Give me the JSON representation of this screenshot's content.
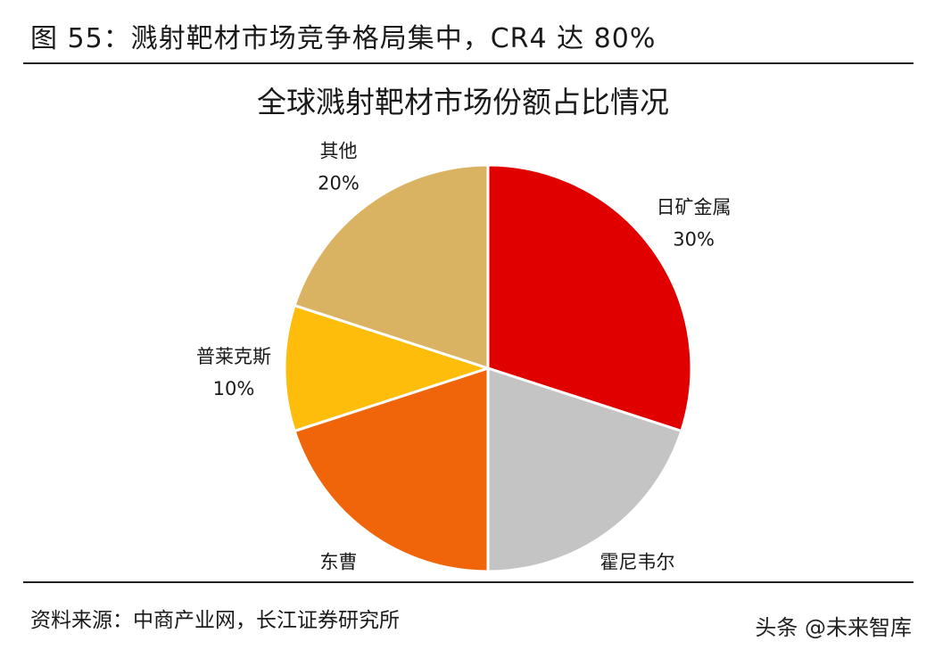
{
  "figure_title": "图 55：溅射靶材市场竞争格局集中，CR4 达 80%",
  "source": "资料来源：中商产业网，长江证券研究所",
  "watermark": "头条 @未来智库",
  "colors": {
    "日矿金属": "#e00000",
    "霍尼韦尔": "#c4c4c4",
    "东曹": "#f0650a",
    "普莱克斯": "#fdbd0a",
    "其他": "#d9b262"
  },
  "chart_data": {
    "type": "pie",
    "title": "全球溅射靶材市场份额占比情况",
    "slices": [
      {
        "label": "日矿金属",
        "value": 30,
        "value_label": "30%"
      },
      {
        "label": "霍尼韦尔",
        "value": 20,
        "value_label": "20%"
      },
      {
        "label": "东曹",
        "value": 20,
        "value_label": "20%"
      },
      {
        "label": "普莱克斯",
        "value": 10,
        "value_label": "10%"
      },
      {
        "label": "其他",
        "value": 20,
        "value_label": "20%"
      }
    ],
    "start_angle": "12 o'clock",
    "direction": "clockwise"
  }
}
